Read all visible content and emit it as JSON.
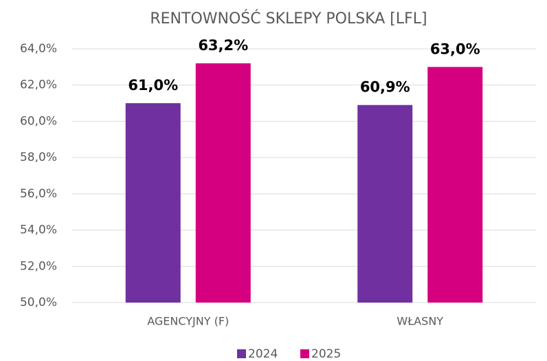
{
  "chart_data": {
    "type": "bar",
    "title": "RENTOWNOŚĆ SKLEPY POLSKA [LFL]",
    "categories": [
      "AGENCYJNY (F)",
      "WŁASNY"
    ],
    "series": [
      {
        "name": "2024",
        "color": "#7030a0",
        "values": [
          61.0,
          60.9
        ],
        "value_labels": [
          "61,0%",
          "60,9%"
        ]
      },
      {
        "name": "2025",
        "color": "#d5007f",
        "values": [
          63.2,
          63.0
        ],
        "value_labels": [
          "63,2%",
          "63,0%"
        ]
      }
    ],
    "ylim": [
      50,
      64
    ],
    "yticks": [
      {
        "value": 50,
        "label": "50,0%"
      },
      {
        "value": 52,
        "label": "52,0%"
      },
      {
        "value": 54,
        "label": "54,0%"
      },
      {
        "value": 56,
        "label": "56,0%"
      },
      {
        "value": 58,
        "label": "58,0%"
      },
      {
        "value": 60,
        "label": "60,0%"
      },
      {
        "value": 62,
        "label": "62,0%"
      },
      {
        "value": 64,
        "label": "64,0%"
      }
    ],
    "grid": true,
    "legend": "bottom"
  }
}
